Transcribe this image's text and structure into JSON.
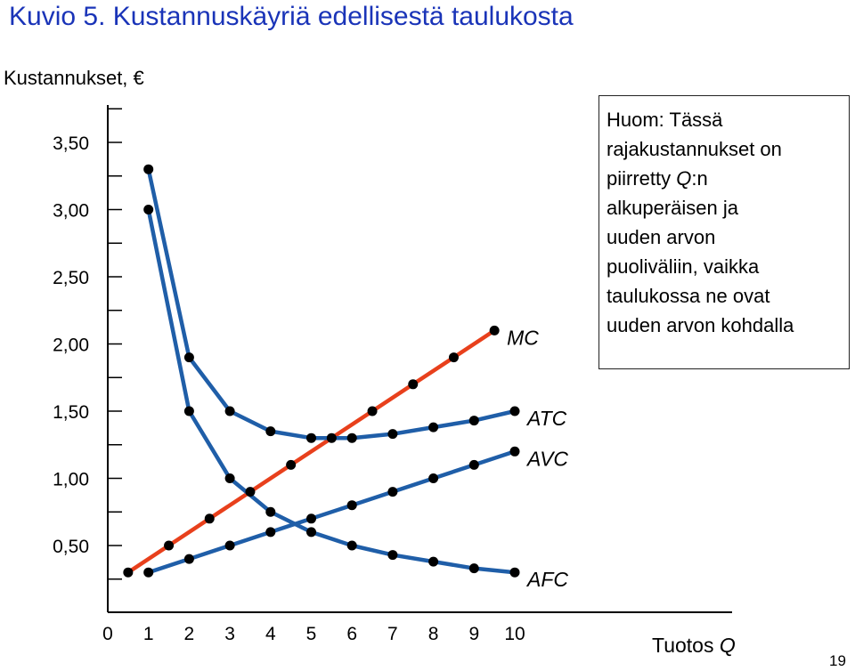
{
  "chart_data": {
    "type": "line",
    "title": "Kuvio 5. Kustannuskäyriä edellisestä taulukosta",
    "ylabel": "Kustannukset, €",
    "xlabel_prefix": "Tuotos ",
    "xlabel_var": "Q",
    "xticks": [
      "0",
      "1",
      "2",
      "3",
      "4",
      "5",
      "6",
      "7",
      "8",
      "9",
      "10"
    ],
    "yticks": [
      "0,50",
      "1,00",
      "1,50",
      "2,00",
      "2,50",
      "3,00",
      "3,50"
    ],
    "ytick_values": [
      0.5,
      1.0,
      1.5,
      2.0,
      2.5,
      3.0,
      3.5
    ],
    "xlim": [
      0,
      10
    ],
    "ylim": [
      0.25,
      3.75
    ],
    "grid": false,
    "series": [
      {
        "name": "MC",
        "color": "#e8401c",
        "x": [
          0.5,
          1.5,
          2.5,
          3.5,
          4.5,
          5.5,
          6.5,
          7.5,
          8.5,
          9.5
        ],
        "y": [
          0.3,
          0.5,
          0.7,
          0.9,
          1.1,
          1.3,
          1.5,
          1.7,
          1.9,
          2.1
        ]
      },
      {
        "name": "ATC",
        "color": "#1f5ea8",
        "x": [
          1,
          2,
          3,
          4,
          5,
          6,
          7,
          8,
          9,
          10
        ],
        "y": [
          3.3,
          1.9,
          1.5,
          1.35,
          1.3,
          1.3,
          1.33,
          1.38,
          1.43,
          1.5
        ]
      },
      {
        "name": "AVC",
        "color": "#1f5ea8",
        "x": [
          1,
          2,
          3,
          4,
          5,
          6,
          7,
          8,
          9,
          10
        ],
        "y": [
          0.3,
          0.4,
          0.5,
          0.6,
          0.7,
          0.8,
          0.9,
          1.0,
          1.1,
          1.2
        ]
      },
      {
        "name": "AFC",
        "color": "#1f5ea8",
        "x": [
          1,
          2,
          3,
          4,
          5,
          6,
          7,
          8,
          9,
          10
        ],
        "y": [
          3.0,
          1.5,
          1.0,
          0.75,
          0.6,
          0.5,
          0.43,
          0.38,
          0.33,
          0.3
        ]
      }
    ]
  },
  "note": {
    "line1": "Huom: Tässä",
    "line2": "rajakustannukset on",
    "line3_prefix": "piirretty ",
    "line3_var": "Q",
    "line3_suffix": ":n",
    "line4": "alkuperäisen ja",
    "line5": "uuden arvon",
    "line6": "puoliväliin, vaikka",
    "line7": "taulukossa ne ovat",
    "line8": "uuden arvon kohdalla"
  },
  "page_number": "19"
}
